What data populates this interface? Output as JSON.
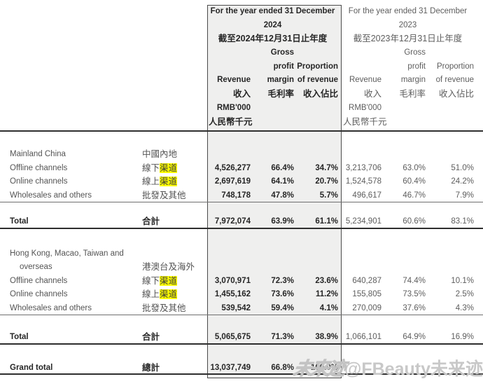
{
  "colors": {
    "highlight": "#ffff00",
    "box_fill": "#efefee",
    "box_border": "#4b4b4b"
  },
  "header": {
    "col2024": {
      "period_line1": "For the year ended 31 December",
      "period_line2": "2024",
      "period_line3": "截至2024年12月31日止年度",
      "gross": "Gross",
      "profit": "profit",
      "proportion": "Proportion",
      "revenue": "Revenue",
      "margin": "margin",
      "of_revenue": "of revenue",
      "revenue_zh": "收入",
      "margin_zh": "毛利率",
      "proportion_zh": "收入佔比",
      "unit": "RMB'000",
      "unit_zh": "人民幣千元"
    },
    "col2023": {
      "period_line1": "For the year ended 31 December",
      "period_line2": "2023",
      "period_line3": "截至2023年12月31日止年度",
      "gross": "Gross",
      "profit": "profit",
      "proportion": "Proportion",
      "revenue": "Revenue",
      "margin": "margin",
      "of_revenue": "of revenue",
      "revenue_zh": "收入",
      "margin_zh": "毛利率",
      "proportion_zh": "收入佔比",
      "unit": "RMB'000",
      "unit_zh": "人民幣千元"
    }
  },
  "sections": [
    {
      "title_en": "Mainland China",
      "title_zh": "中國內地",
      "rows": [
        {
          "en": "Offline channels",
          "zh_prefix": "線下",
          "zh_highlight": "渠道",
          "revenue_2024": "4,526,277",
          "margin_2024": "66.4%",
          "proportion_2024": "34.7%",
          "revenue_2023": "3,213,706",
          "margin_2023": "63.0%",
          "proportion_2023": "51.0%"
        },
        {
          "en": "Online channels",
          "zh_prefix": "線上",
          "zh_highlight": "渠道",
          "revenue_2024": "2,697,619",
          "margin_2024": "64.1%",
          "proportion_2024": "20.7%",
          "revenue_2023": "1,524,578",
          "margin_2023": "60.4%",
          "proportion_2023": "24.2%"
        },
        {
          "en": "Wholesales and others",
          "zh": "批發及其他",
          "revenue_2024": "748,178",
          "margin_2024": "47.8%",
          "proportion_2024": "5.7%",
          "revenue_2023": "496,617",
          "margin_2023": "46.7%",
          "proportion_2023": "7.9%"
        }
      ],
      "total": {
        "en": "Total",
        "zh": "合計",
        "revenue_2024": "7,972,074",
        "margin_2024": "63.9%",
        "proportion_2024": "61.1%",
        "revenue_2023": "5,234,901",
        "margin_2023": "60.6%",
        "proportion_2023": "83.1%"
      }
    },
    {
      "title_en": "Hong Kong, Macao, Taiwan and",
      "title_en2": "overseas",
      "title_zh": "港澳台及海外",
      "rows": [
        {
          "en": "Offline channels",
          "zh_prefix": "線下",
          "zh_highlight": "渠道",
          "revenue_2024": "3,070,971",
          "margin_2024": "72.3%",
          "proportion_2024": "23.6%",
          "revenue_2023": "640,287",
          "margin_2023": "74.4%",
          "proportion_2023": "10.1%"
        },
        {
          "en": "Online channels",
          "zh_prefix": "線上",
          "zh_highlight": "渠道",
          "revenue_2024": "1,455,162",
          "margin_2024": "73.6%",
          "proportion_2024": "11.2%",
          "revenue_2023": "155,805",
          "margin_2023": "73.5%",
          "proportion_2023": "2.5%"
        },
        {
          "en": "Wholesales and others",
          "zh": "批發及其他",
          "revenue_2024": "539,542",
          "margin_2024": "59.4%",
          "proportion_2024": "4.1%",
          "revenue_2023": "270,009",
          "margin_2023": "37.6%",
          "proportion_2023": "4.3%"
        }
      ],
      "total": {
        "en": "Total",
        "zh": "合計",
        "revenue_2024": "5,065,675",
        "margin_2024": "71.3%",
        "proportion_2024": "38.9%",
        "revenue_2023": "1,066,101",
        "margin_2023": "64.9%",
        "proportion_2023": "16.9%"
      }
    }
  ],
  "grand_total": {
    "en": "Grand total",
    "zh": "總計",
    "revenue_2024": "13,037,749",
    "margin_2024": "66.8%",
    "proportion_2024": "100.0%"
  },
  "watermark": {
    "logo": "未来迹",
    "handle": "@FBeauty未来迹"
  }
}
